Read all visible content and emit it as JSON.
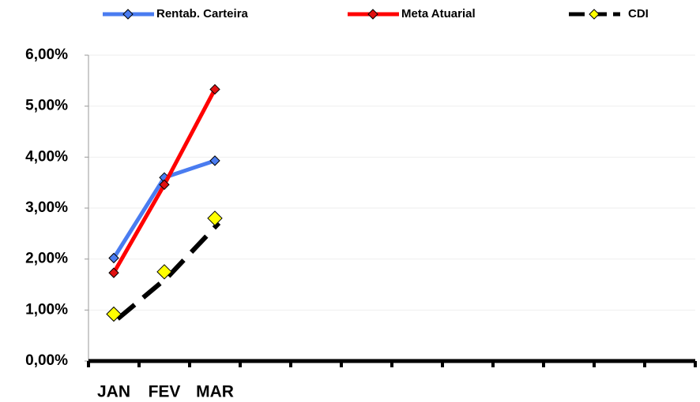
{
  "chart_data": {
    "type": "line",
    "categories": [
      "JAN",
      "FEV",
      "MAR",
      null,
      null,
      null,
      null,
      null,
      null,
      null,
      null,
      null
    ],
    "series": [
      {
        "name": "Rentab. Carteira",
        "color": "#4a7cf0",
        "marker_color": "#4a7cf0",
        "dashed": false,
        "values": [
          2.02,
          3.6,
          3.93,
          null,
          null,
          null,
          null,
          null,
          null,
          null,
          null,
          null
        ]
      },
      {
        "name": "Meta Atuarial",
        "color": "#ff0000",
        "marker_color": "#e01010",
        "dashed": false,
        "values": [
          1.73,
          3.46,
          5.33,
          null,
          null,
          null,
          null,
          null,
          null,
          null,
          null,
          null
        ]
      },
      {
        "name": "CDI",
        "color": "#000000",
        "marker_color": "#ffff00",
        "dashed": true,
        "values": [
          0.92,
          1.75,
          2.8,
          null,
          null,
          null,
          null,
          null,
          null,
          null,
          null,
          null
        ]
      }
    ],
    "ylim": [
      0,
      6
    ],
    "yticks": [
      {
        "value": 0,
        "label": "0,00%"
      },
      {
        "value": 1,
        "label": "1,00%"
      },
      {
        "value": 2,
        "label": "2,00%"
      },
      {
        "value": 3,
        "label": "3,00%"
      },
      {
        "value": 4,
        "label": "4,00%"
      },
      {
        "value": 5,
        "label": "5,00%"
      },
      {
        "value": 6,
        "label": "6,00%"
      }
    ],
    "grid": true,
    "legend": "top"
  }
}
